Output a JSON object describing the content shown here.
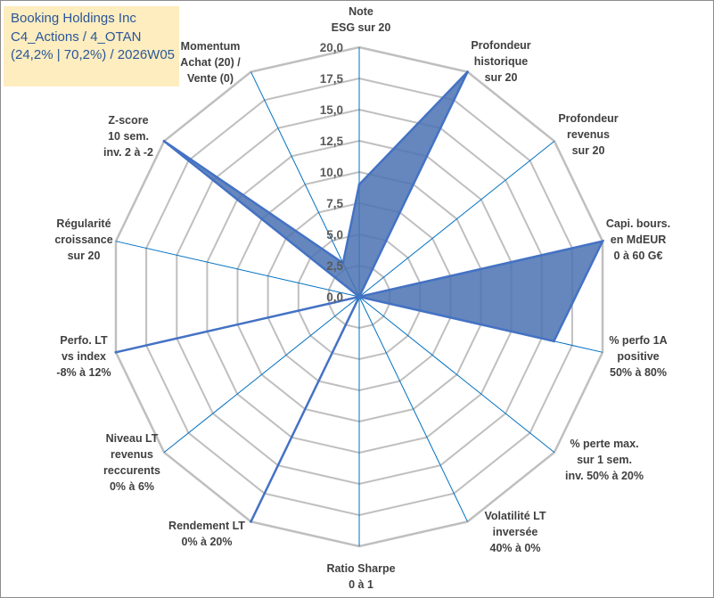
{
  "title_box": {
    "line1": "Booking Holdings Inc",
    "line2": "C4_Actions / 4_OTAN",
    "line3": "(24,2% | 70,2%) / 2026W05"
  },
  "chart_data": {
    "type": "radar",
    "rmin": 0,
    "rmax": 20,
    "tick_step": 2.5,
    "tick_labels": [
      "0,0",
      "2,5",
      "5,0",
      "7,5",
      "10,0",
      "12,5",
      "15,0",
      "17,5",
      "20,0"
    ],
    "axes": [
      [
        "Note",
        "ESG sur 20"
      ],
      [
        "Profondeur",
        "historique",
        "sur 20"
      ],
      [
        "Profondeur",
        "revenus",
        "sur 20"
      ],
      [
        "Capi. bours.",
        "en MdEUR",
        "0 à 60 G€"
      ],
      [
        "% perfo 1A",
        "positive",
        "50% à 80%"
      ],
      [
        "% perte max.",
        "sur 1 sem.",
        "inv. 50% à 20%"
      ],
      [
        "Volatilité LT",
        "inversée",
        "40% à 0%"
      ],
      [
        "Ratio Sharpe",
        "0 à 1"
      ],
      [
        "Rendement LT",
        "0% à 20%"
      ],
      [
        "Niveau LT",
        "revenus",
        "reccurents",
        "0% à 6%"
      ],
      [
        "Perfo. LT",
        "vs index",
        "-8% à 12%"
      ],
      [
        "Régularité",
        "croissance",
        "sur 20"
      ],
      [
        "Z-score",
        "10 sem.",
        "inv. 2 à -2"
      ],
      [
        "Momentum",
        "Achat (20) /",
        "Vente (0)"
      ]
    ],
    "series": [
      {
        "name": "Booking Holdings Inc",
        "values": [
          9,
          20,
          0,
          20,
          16,
          0,
          0,
          0,
          20,
          0,
          20,
          0,
          20,
          3
        ],
        "color": "#4472c4"
      }
    ],
    "colors": {
      "fill": "#4a72b2",
      "stroke": "#4472c4",
      "grid": "#bfbfbf",
      "spoke": "#0070c0"
    }
  }
}
